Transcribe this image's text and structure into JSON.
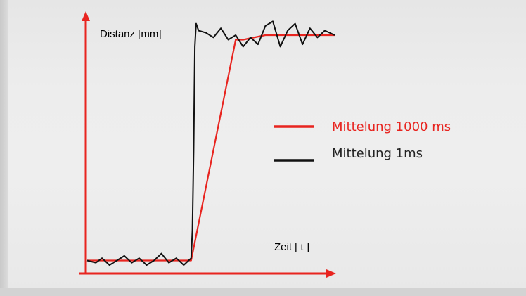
{
  "chart_data": {
    "type": "line",
    "title": "",
    "ylabel": "Distanz  [mm]",
    "xlabel": "Zeit [ t ]",
    "grid": false,
    "legend_position": "right",
    "colors": {
      "axis": "#e8241f",
      "avg_1000": "#e8241f",
      "avg_1": "#111111",
      "background": "#eeeeee"
    },
    "series": [
      {
        "name": "Mittelung 1000 ms",
        "color": "#e8241f",
        "x": [
          0,
          0.42,
          0.6,
          0.63,
          0.72,
          1.0
        ],
        "y": [
          0.02,
          0.02,
          0.98,
          0.98,
          1.0,
          1.0
        ]
      },
      {
        "name": "Mittelung 1ms",
        "color": "#111111",
        "x": [
          0,
          0.035,
          0.06,
          0.09,
          0.12,
          0.15,
          0.18,
          0.21,
          0.24,
          0.27,
          0.3,
          0.33,
          0.36,
          0.39,
          0.41,
          0.42,
          0.425,
          0.43,
          0.435,
          0.44,
          0.45,
          0.48,
          0.51,
          0.54,
          0.57,
          0.6,
          0.63,
          0.66,
          0.69,
          0.72,
          0.75,
          0.78,
          0.81,
          0.84,
          0.87,
          0.9,
          0.93,
          0.96,
          1.0
        ],
        "y": [
          0.02,
          0.01,
          0.03,
          0.0,
          0.02,
          0.04,
          0.01,
          0.03,
          0.0,
          0.02,
          0.05,
          0.01,
          0.03,
          0.0,
          0.02,
          0.03,
          0.15,
          0.5,
          0.95,
          1.05,
          1.02,
          1.01,
          0.99,
          1.03,
          0.98,
          1.0,
          0.95,
          0.99,
          0.96,
          1.04,
          1.06,
          0.95,
          1.02,
          1.05,
          0.96,
          1.03,
          0.99,
          1.02,
          1.0
        ]
      }
    ],
    "legend": [
      {
        "label": "Mittelung 1000 ms",
        "color": "#e8241f"
      },
      {
        "label": "Mittelung 1ms",
        "color": "#111111"
      }
    ]
  }
}
